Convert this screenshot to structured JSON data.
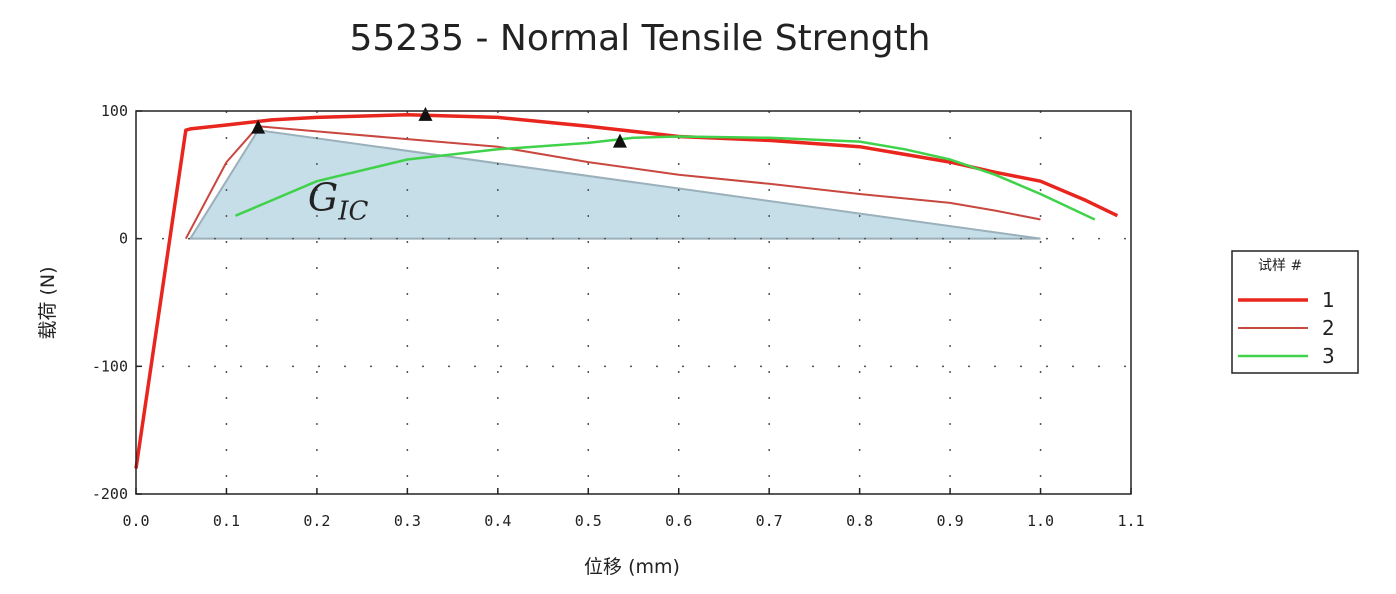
{
  "chart_data": {
    "type": "line",
    "title": "55235 - Normal Tensile Strength",
    "xlabel": "位移 (mm)",
    "ylabel": "载荷 (N)",
    "xlim": [
      0.0,
      1.1
    ],
    "ylim": [
      -200,
      100
    ],
    "x_ticks": [
      "0.0",
      "0.1",
      "0.2",
      "0.3",
      "0.4",
      "0.5",
      "0.6",
      "0.7",
      "0.8",
      "0.9",
      "1.0",
      "1.1"
    ],
    "x_tick_values": [
      0,
      0.1,
      0.2,
      0.3,
      0.4,
      0.5,
      0.6,
      0.7,
      0.8,
      0.9,
      1.0,
      1.1
    ],
    "y_ticks": [
      "100",
      "0",
      "-100",
      "-200"
    ],
    "y_tick_values": [
      100,
      0,
      -100,
      -200
    ],
    "grid": "dotted",
    "legend": {
      "title": "试样 #",
      "placement": "right",
      "entries": [
        "1",
        "2",
        "3"
      ]
    },
    "colors": {
      "series1": "#e8261e",
      "series2": "#c8473f",
      "series3": "#3fd24a",
      "area_fill": "#bcd8e4",
      "area_stroke": "#9ab0bb",
      "marker": "#111111"
    },
    "series": [
      {
        "name": "1",
        "x": [
          0.0,
          0.055,
          0.06,
          0.1,
          0.15,
          0.2,
          0.3,
          0.4,
          0.5,
          0.6,
          0.7,
          0.8,
          0.9,
          0.95,
          1.0,
          1.05,
          1.085
        ],
        "y": [
          -180,
          85,
          86,
          89,
          93,
          95,
          97,
          95,
          88,
          80,
          77,
          72,
          60,
          52,
          45,
          30,
          18
        ]
      },
      {
        "name": "2",
        "x": [
          0.055,
          0.1,
          0.135,
          0.2,
          0.3,
          0.4,
          0.5,
          0.6,
          0.7,
          0.8,
          0.9,
          0.95,
          1.0
        ],
        "y": [
          0,
          60,
          88,
          84,
          78,
          72,
          60,
          50,
          43,
          35,
          28,
          22,
          15
        ]
      },
      {
        "name": "3",
        "x": [
          0.11,
          0.15,
          0.2,
          0.3,
          0.4,
          0.5,
          0.55,
          0.6,
          0.7,
          0.8,
          0.85,
          0.9,
          0.95,
          1.0,
          1.06
        ],
        "y": [
          18,
          30,
          45,
          62,
          70,
          75,
          79,
          80,
          79,
          76,
          70,
          62,
          50,
          35,
          15
        ]
      }
    ],
    "shaded_region": {
      "label_base": "G",
      "label_sub": "IC",
      "x": [
        0.06,
        0.135,
        1.0
      ],
      "y": [
        0,
        85,
        0
      ]
    },
    "peak_markers": {
      "x": [
        0.135,
        0.32,
        0.535
      ],
      "y": [
        87,
        97,
        76
      ]
    }
  }
}
